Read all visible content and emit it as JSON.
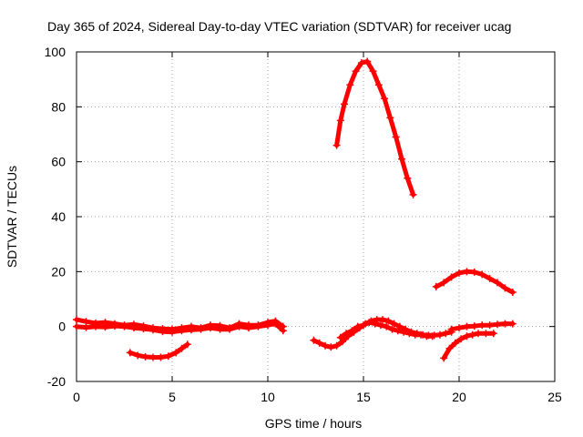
{
  "chart_data": {
    "type": "scatter",
    "title": "Day 365 of 2024, Sidereal Day-to-day VTEC variation (SDTVAR) for receiver ucag",
    "xlabel": "GPS time / hours",
    "ylabel": "SDTVAR / TECUs",
    "xlim": [
      0,
      25
    ],
    "ylim": [
      -20,
      100
    ],
    "xticks": [
      0,
      5,
      10,
      15,
      20,
      25
    ],
    "yticks": [
      -20,
      0,
      20,
      40,
      60,
      80,
      100
    ],
    "grid": true,
    "marker": "plus",
    "color": "#ff0000",
    "series": [
      {
        "name": "arc-near-zero-a-top",
        "x": [
          0,
          0.5,
          1.0,
          1.5,
          2.0,
          2.5,
          3.0,
          3.5,
          4.0,
          4.5,
          5.0,
          5.5,
          6.0,
          6.5,
          7.0,
          7.5,
          8.0,
          8.5,
          9.0,
          9.5,
          10.0,
          10.4,
          10.8
        ],
        "y": [
          2.5,
          1.8,
          1.2,
          1.5,
          1.0,
          0.5,
          0.8,
          0.2,
          -0.5,
          -0.8,
          -1.0,
          -0.5,
          0,
          -0.5,
          0.5,
          0.3,
          -0.5,
          1.0,
          0.5,
          0.5,
          1.5,
          2.0,
          0
        ]
      },
      {
        "name": "arc-near-zero-a-bottom",
        "x": [
          0,
          0.5,
          1.0,
          1.5,
          2.0,
          2.5,
          3.0,
          3.5,
          4.0,
          4.5,
          5.0,
          5.5,
          6.0,
          6.5,
          7.0,
          7.5,
          8.0,
          8.5,
          9.0,
          9.5,
          10.0,
          10.4,
          10.8
        ],
        "y": [
          0,
          -0.3,
          0,
          -0.2,
          0.2,
          0,
          -0.5,
          -0.8,
          -1.2,
          -1.8,
          -2.0,
          -1.5,
          -1.2,
          -1.0,
          -0.5,
          -1.0,
          -1.0,
          0,
          -0.5,
          0,
          0.5,
          1.0,
          -1.5
        ]
      },
      {
        "name": "arc-low-dip",
        "x": [
          2.8,
          3.2,
          3.6,
          4.0,
          4.4,
          4.8,
          5.2,
          5.5,
          5.8
        ],
        "y": [
          -9.5,
          -10.5,
          -11.0,
          -11.2,
          -11.2,
          -10.8,
          -9.5,
          -8.0,
          -6.5
        ]
      },
      {
        "name": "arc-peak",
        "x": [
          13.6,
          13.8,
          14.0,
          14.3,
          14.6,
          14.9,
          15.2,
          15.5,
          15.8,
          16.1,
          16.4,
          16.7,
          17.0,
          17.3,
          17.6
        ],
        "y": [
          66,
          75,
          81,
          88,
          93,
          96,
          96.5,
          93,
          88,
          83,
          76,
          69,
          61,
          54,
          48
        ]
      },
      {
        "name": "arc-afternoon-a",
        "x": [
          12.4,
          12.7,
          13.0,
          13.3,
          13.6,
          13.9,
          14.2,
          14.5,
          14.8,
          15.1,
          15.4,
          15.7,
          16.0,
          16.3,
          16.6,
          16.9,
          17.2,
          17.5,
          17.8,
          18.1,
          18.4,
          18.7,
          19.0,
          19.3,
          19.6
        ],
        "y": [
          -5.0,
          -6.0,
          -7.0,
          -7.5,
          -7.0,
          -5.5,
          -3.5,
          -2.0,
          -0.5,
          1.0,
          2.0,
          2.5,
          2.5,
          2.0,
          1.0,
          0,
          -1.0,
          -2.0,
          -2.5,
          -3.0,
          -3.2,
          -3.2,
          -3.0,
          -2.5,
          -2.0
        ]
      },
      {
        "name": "arc-afternoon-b",
        "x": [
          13.8,
          14.1,
          14.4,
          14.7,
          15.0,
          15.3,
          15.6,
          15.9,
          16.2,
          16.5,
          16.8,
          17.1,
          17.4,
          17.7,
          18.0,
          18.3,
          18.6
        ],
        "y": [
          -4.0,
          -2.5,
          -1.5,
          0,
          0.5,
          1.5,
          1.0,
          0.5,
          0,
          -1.0,
          -1.5,
          -2.0,
          -2.5,
          -3.0,
          -3.0,
          -3.5,
          -3.5
        ]
      },
      {
        "name": "arc-evening-flat",
        "x": [
          19.6,
          20.0,
          20.4,
          20.8,
          21.2,
          21.6,
          22.0,
          22.4,
          22.8
        ],
        "y": [
          -1.0,
          -0.5,
          0,
          0.2,
          0.5,
          0.5,
          0.8,
          1.0,
          1.0
        ]
      },
      {
        "name": "arc-evening-hump",
        "x": [
          18.8,
          19.2,
          19.6,
          20.0,
          20.4,
          20.8,
          21.2,
          21.6,
          22.0,
          22.4,
          22.8
        ],
        "y": [
          14.5,
          16.0,
          18.0,
          19.5,
          20.0,
          19.8,
          19.0,
          17.5,
          16.0,
          14.0,
          12.5
        ]
      },
      {
        "name": "arc-evening-rise",
        "x": [
          19.2,
          19.5,
          19.8,
          20.1,
          20.4,
          20.7,
          21.0,
          21.4,
          21.8
        ],
        "y": [
          -11.5,
          -8.0,
          -6.0,
          -4.5,
          -3.5,
          -3.0,
          -2.5,
          -2.5,
          -2.5
        ]
      }
    ]
  }
}
